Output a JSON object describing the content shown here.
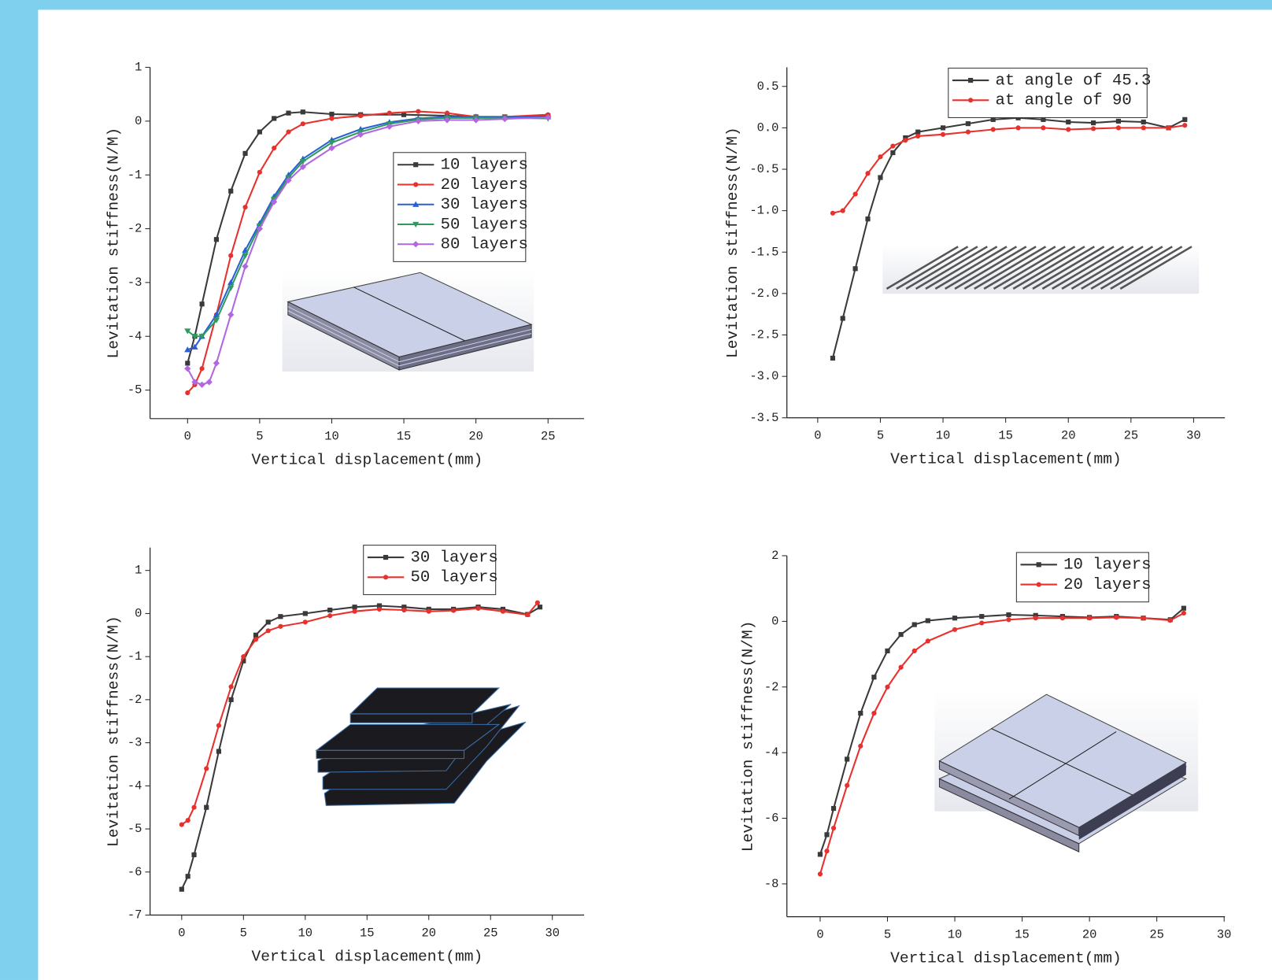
{
  "chart_data": [
    {
      "type": "line",
      "xlabel": "Vertical displacement(mm)",
      "ylabel": "Levitation stiffness(N/M)",
      "xlim": [
        -2.6,
        27.5
      ],
      "ylim": [
        -5.53,
        1
      ],
      "xticks": [
        0,
        5,
        10,
        15,
        20,
        25
      ],
      "yticks": [
        -5,
        -4,
        -3,
        -2,
        -1,
        0,
        1
      ],
      "series": [
        {
          "name": "10 layers",
          "color": "#3a3a3a",
          "marker": "square",
          "x": [
            0,
            0.5,
            1,
            2,
            3,
            4,
            5,
            6,
            7,
            8,
            10,
            12,
            15,
            18,
            20,
            22,
            25
          ],
          "values": [
            -4.5,
            -4.0,
            -3.4,
            -2.2,
            -1.3,
            -0.6,
            -0.2,
            0.05,
            0.15,
            0.17,
            0.13,
            0.12,
            0.12,
            0.1,
            0.08,
            0.08,
            0.1
          ]
        },
        {
          "name": "20 layers",
          "color": "#e8302d",
          "marker": "circle",
          "x": [
            0,
            0.5,
            1,
            2,
            3,
            4,
            5,
            6,
            7,
            8,
            10,
            12,
            14,
            16,
            18,
            20,
            22,
            25
          ],
          "values": [
            -5.05,
            -4.9,
            -4.6,
            -3.6,
            -2.5,
            -1.6,
            -0.95,
            -0.5,
            -0.2,
            -0.05,
            0.05,
            0.1,
            0.15,
            0.18,
            0.15,
            0.08,
            0.08,
            0.12
          ]
        },
        {
          "name": "30 layers",
          "color": "#2a5fd6",
          "marker": "triangle-up",
          "x": [
            0,
            0.5,
            1,
            2,
            3,
            4,
            5,
            6,
            7,
            8,
            10,
            12,
            14,
            16,
            18,
            20,
            22,
            25
          ],
          "values": [
            -4.25,
            -4.2,
            -4.0,
            -3.6,
            -3.0,
            -2.4,
            -1.9,
            -1.4,
            -1.0,
            -0.7,
            -0.35,
            -0.15,
            -0.02,
            0.05,
            0.08,
            0.08,
            0.07,
            0.08
          ]
        },
        {
          "name": "50 layers",
          "color": "#2e9a5e",
          "marker": "triangle-down",
          "x": [
            0,
            0.5,
            1,
            2,
            3,
            4,
            5,
            6,
            7,
            8,
            10,
            12,
            14,
            16,
            18,
            20,
            22,
            25
          ],
          "values": [
            -3.9,
            -4.0,
            -4.0,
            -3.7,
            -3.1,
            -2.5,
            -1.95,
            -1.45,
            -1.05,
            -0.75,
            -0.4,
            -0.2,
            -0.05,
            0.03,
            0.06,
            0.06,
            0.06,
            0.05
          ]
        },
        {
          "name": "80 layers",
          "color": "#b067e0",
          "marker": "diamond",
          "x": [
            0,
            0.5,
            1,
            1.5,
            2,
            3,
            4,
            5,
            6,
            7,
            8,
            10,
            12,
            14,
            16,
            18,
            20,
            22,
            25
          ],
          "values": [
            -4.6,
            -4.85,
            -4.9,
            -4.85,
            -4.5,
            -3.6,
            -2.7,
            -2.0,
            -1.5,
            -1.1,
            -0.85,
            -0.5,
            -0.25,
            -0.1,
            0.0,
            0.02,
            0.02,
            0.04,
            0.07
          ]
        }
      ]
    },
    {
      "type": "line",
      "xlabel": "Vertical displacement(mm)",
      "ylabel": "Levitation stiffness(N/M)",
      "xlim": [
        -2.46,
        32.5
      ],
      "ylim": [
        -3.5,
        0.73
      ],
      "xticks": [
        0,
        5,
        10,
        15,
        20,
        25,
        30
      ],
      "yticks": [
        -3.5,
        {
          "value": -3,
          "label": "-3.0"
        },
        -2.5,
        {
          "value": -2,
          "label": "-2.0"
        },
        -1.5,
        {
          "value": -1,
          "label": "-1.0"
        },
        -0.5,
        {
          "value": 0,
          "label": "0.0"
        },
        0.5
      ],
      "series": [
        {
          "name": "at angle of 45.3",
          "color": "#3a3a3a",
          "marker": "square",
          "x": [
            1.2,
            2,
            3,
            4,
            5,
            6,
            7,
            8,
            10,
            12,
            14,
            16,
            18,
            20,
            22,
            24,
            26,
            28,
            29.3
          ],
          "values": [
            -2.78,
            -2.3,
            -1.7,
            -1.1,
            -0.6,
            -0.3,
            -0.12,
            -0.05,
            0.0,
            0.05,
            0.1,
            0.12,
            0.1,
            0.07,
            0.06,
            0.08,
            0.07,
            0.0,
            0.1
          ]
        },
        {
          "name": "at angle of 90",
          "color": "#e8302d",
          "marker": "circle",
          "x": [
            1.2,
            2,
            3,
            4,
            5,
            6,
            7,
            8,
            10,
            12,
            14,
            16,
            18,
            20,
            22,
            24,
            26,
            28,
            29.3
          ],
          "values": [
            -1.03,
            -1.0,
            -0.8,
            -0.55,
            -0.35,
            -0.22,
            -0.15,
            -0.1,
            -0.08,
            -0.05,
            -0.02,
            0.0,
            0.0,
            -0.02,
            -0.01,
            0.0,
            0.0,
            0.0,
            0.03
          ]
        }
      ]
    },
    {
      "type": "line",
      "xlabel": "Vertical displacement(mm)",
      "ylabel": "Levitation stiffness(N/M)",
      "xlim": [
        -2.56,
        32.57
      ],
      "ylim": [
        -7,
        1.53
      ],
      "xticks": [
        0,
        5,
        10,
        15,
        20,
        25,
        30
      ],
      "yticks": [
        -7,
        -6,
        -5,
        -4,
        -3,
        -2,
        -1,
        0,
        1
      ],
      "series": [
        {
          "name": "30 layers",
          "color": "#3a3a3a",
          "marker": "square",
          "x": [
            0,
            0.5,
            1,
            2,
            3,
            4,
            5,
            6,
            7,
            8,
            10,
            12,
            14,
            16,
            18,
            20,
            22,
            24,
            26,
            28,
            29
          ],
          "values": [
            -6.4,
            -6.1,
            -5.6,
            -4.5,
            -3.2,
            -2.0,
            -1.1,
            -0.5,
            -0.2,
            -0.07,
            0.0,
            0.08,
            0.15,
            0.18,
            0.15,
            0.1,
            0.1,
            0.15,
            0.1,
            -0.02,
            0.15
          ]
        },
        {
          "name": "50 layers",
          "color": "#e8302d",
          "marker": "circle",
          "x": [
            0,
            0.5,
            1,
            2,
            3,
            4,
            5,
            6,
            7,
            8,
            10,
            12,
            14,
            16,
            18,
            20,
            22,
            24,
            26,
            28,
            28.8
          ],
          "values": [
            -4.9,
            -4.8,
            -4.5,
            -3.6,
            -2.6,
            -1.7,
            -1.0,
            -0.6,
            -0.4,
            -0.3,
            -0.2,
            -0.05,
            0.05,
            0.1,
            0.08,
            0.05,
            0.07,
            0.12,
            0.05,
            -0.03,
            0.25
          ]
        }
      ]
    },
    {
      "type": "line",
      "xlabel": "Vertical displacement(mm)",
      "ylabel": "Levitation stiffness(N/M)",
      "xlim": [
        -2.47,
        30.06
      ],
      "ylim": [
        -9,
        2
      ],
      "xticks": [
        0,
        5,
        10,
        15,
        20,
        25,
        30
      ],
      "yticks": [
        -8,
        -6,
        -4,
        -2,
        0,
        2
      ],
      "series": [
        {
          "name": "10 layers",
          "color": "#3a3a3a",
          "marker": "square",
          "x": [
            0,
            0.5,
            1,
            2,
            3,
            4,
            5,
            6,
            7,
            8,
            10,
            12,
            14,
            16,
            18,
            20,
            22,
            24,
            26,
            27
          ],
          "values": [
            -7.1,
            -6.5,
            -5.7,
            -4.2,
            -2.8,
            -1.7,
            -0.9,
            -0.4,
            -0.1,
            0.02,
            0.1,
            0.15,
            0.2,
            0.18,
            0.15,
            0.12,
            0.15,
            0.1,
            0.05,
            0.4
          ]
        },
        {
          "name": "20 layers",
          "color": "#e8302d",
          "marker": "circle",
          "x": [
            0,
            0.5,
            1,
            2,
            3,
            4,
            5,
            6,
            7,
            8,
            10,
            12,
            14,
            16,
            18,
            20,
            22,
            24,
            26,
            27
          ],
          "values": [
            -7.7,
            -7.0,
            -6.3,
            -5.0,
            -3.8,
            -2.8,
            -2.0,
            -1.4,
            -0.9,
            -0.6,
            -0.25,
            -0.05,
            0.05,
            0.1,
            0.1,
            0.1,
            0.12,
            0.1,
            0.03,
            0.25
          ]
        }
      ]
    }
  ]
}
